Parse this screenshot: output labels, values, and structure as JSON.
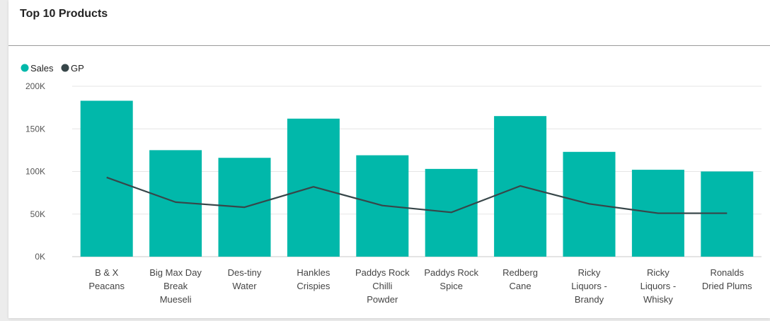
{
  "card": {
    "title": "Top 10 Products"
  },
  "colors": {
    "sales": "#01b8aa",
    "gp": "#374649",
    "grid": "#e6e6e6",
    "axis": "#c8c8c8"
  },
  "chart_data": {
    "type": "bar",
    "title": "Top 10 Products",
    "legend_position": "top-left",
    "categories": [
      "B & X Peacans",
      "Big Max Day Break Mueseli",
      "Des-tiny Water",
      "Hankles Crispies",
      "Paddys Rock Chilli Powder",
      "Paddys Rock Spice",
      "Redberg Cane",
      "Ricky Liquors - Brandy",
      "Ricky Liquors - Whisky",
      "Ronalds Dried Plums"
    ],
    "category_lines": [
      [
        "B & X",
        "Peacans"
      ],
      [
        "Big Max Day",
        "Break",
        "Mueseli"
      ],
      [
        "Des-tiny",
        "Water"
      ],
      [
        "Hankles",
        "Crispies"
      ],
      [
        "Paddys Rock",
        "Chilli",
        "Powder"
      ],
      [
        "Paddys Rock",
        "Spice"
      ],
      [
        "Redberg",
        "Cane"
      ],
      [
        "Ricky",
        "Liquors -",
        "Brandy"
      ],
      [
        "Ricky",
        "Liquors -",
        "Whisky"
      ],
      [
        "Ronalds",
        "Dried Plums"
      ]
    ],
    "series": [
      {
        "name": "Sales",
        "type": "bar",
        "values": [
          183000,
          125000,
          116000,
          162000,
          119000,
          103000,
          165000,
          123000,
          102000,
          100000
        ]
      },
      {
        "name": "GP",
        "type": "line",
        "values": [
          93000,
          64000,
          58000,
          82000,
          60000,
          52000,
          83000,
          62000,
          51000,
          51000
        ]
      }
    ],
    "ylim": [
      0,
      200000
    ],
    "yticks": [
      {
        "value": 0,
        "label": "0K"
      },
      {
        "value": 50000,
        "label": "50K"
      },
      {
        "value": 100000,
        "label": "100K"
      },
      {
        "value": 150000,
        "label": "150K"
      },
      {
        "value": 200000,
        "label": "200K"
      }
    ],
    "grid": true
  }
}
